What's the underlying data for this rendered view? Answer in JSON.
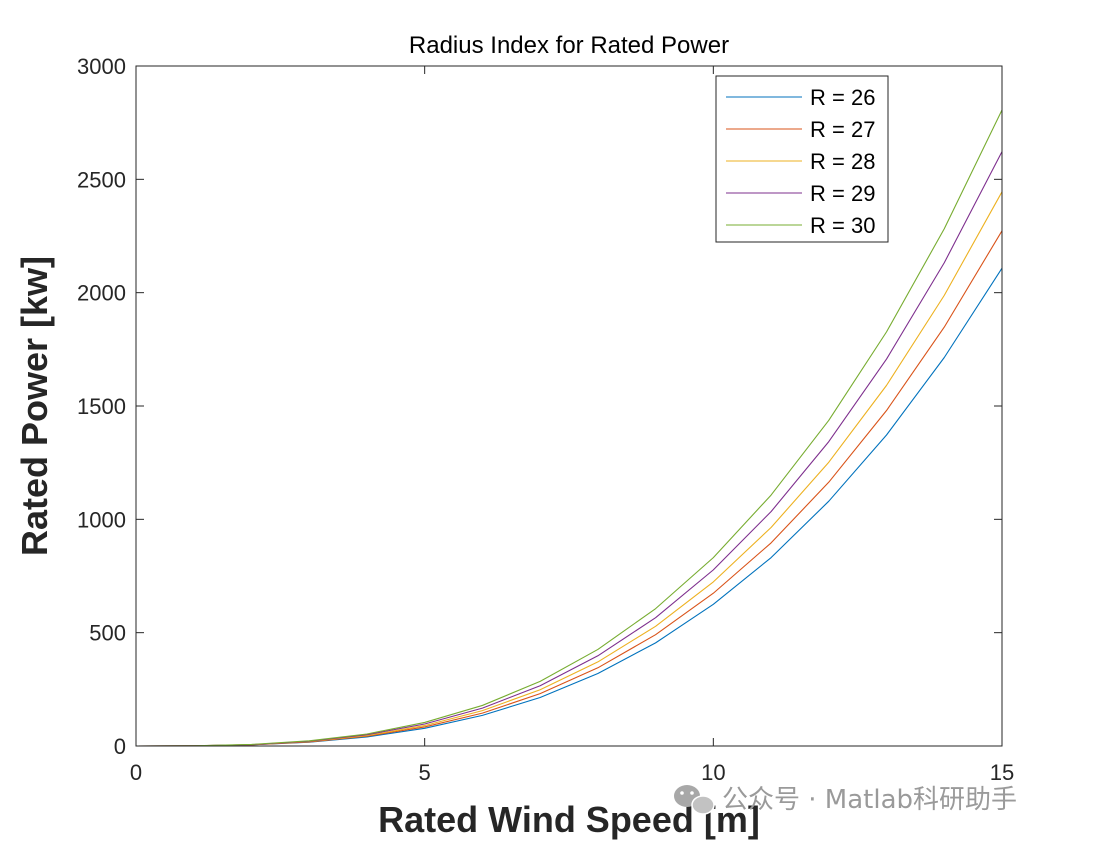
{
  "chart_data": {
    "type": "line",
    "title": "Radius Index for Rated Power",
    "xlabel": "Rated Wind Speed [m]",
    "ylabel": "Rated Power [kw]",
    "xlim": [
      0,
      15
    ],
    "ylim": [
      0,
      3000
    ],
    "xticks": [
      0,
      5,
      10,
      15
    ],
    "xtick_labels": [
      "0",
      "5",
      "10",
      "15"
    ],
    "yticks": [
      0,
      500,
      1000,
      1500,
      2000,
      2500,
      3000
    ],
    "ytick_labels": [
      "0",
      "500",
      "1000",
      "1500",
      "2000",
      "2500",
      "3000"
    ],
    "grid": false,
    "legend_position": "top-right",
    "x": [
      0,
      1,
      2,
      3,
      4,
      5,
      6,
      7,
      8,
      9,
      10,
      11,
      12,
      13,
      14,
      15
    ],
    "series": [
      {
        "name": "R = 26",
        "color": "#0072BD",
        "values": [
          0,
          0.6,
          5,
          17,
          40,
          78,
          135,
          214,
          320,
          455,
          625,
          831,
          1080,
          1372,
          1714,
          2108
        ]
      },
      {
        "name": "R = 27",
        "color": "#D95319",
        "values": [
          0,
          0.7,
          5,
          18,
          43,
          84,
          145,
          231,
          345,
          491,
          674,
          896,
          1164,
          1480,
          1848,
          2273
        ]
      },
      {
        "name": "R = 28",
        "color": "#EDB120",
        "values": [
          0,
          0.7,
          6,
          20,
          46,
          90,
          156,
          248,
          371,
          528,
          724,
          964,
          1252,
          1591,
          1988,
          2445
        ]
      },
      {
        "name": "R = 29",
        "color": "#7E2F8E",
        "values": [
          0,
          0.8,
          6,
          21,
          50,
          97,
          167,
          266,
          398,
          566,
          777,
          1034,
          1343,
          1707,
          2132,
          2622
        ]
      },
      {
        "name": "R = 30",
        "color": "#77AC30",
        "values": [
          0,
          0.8,
          7,
          23,
          53,
          104,
          179,
          285,
          426,
          606,
          831,
          1107,
          1437,
          1827,
          2282,
          2806
        ]
      }
    ]
  },
  "watermark": {
    "text": "公众号 · Matlab科研助手",
    "icon": "wechat-icon"
  }
}
